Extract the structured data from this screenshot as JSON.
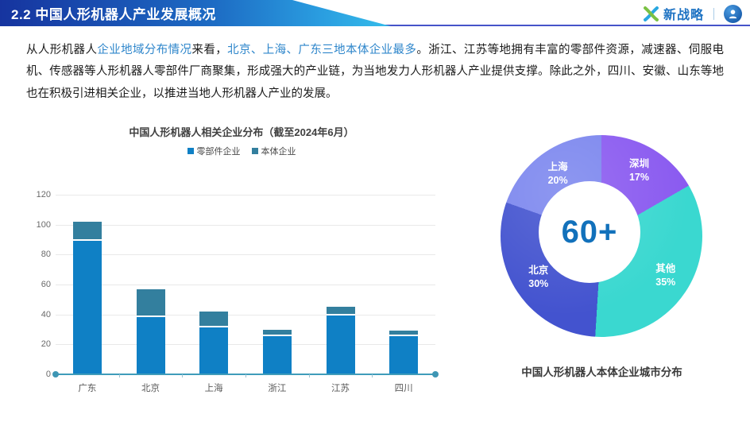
{
  "header": {
    "title": "2.2 中国人形机器人产业发展概况",
    "brand": {
      "name": "新战略",
      "separator": "｜"
    }
  },
  "paragraph": {
    "segments": [
      {
        "text": "从人形机器人",
        "style": "black"
      },
      {
        "text": "企业地域分布情况",
        "style": "blue"
      },
      {
        "text": "来看，",
        "style": "black"
      },
      {
        "text": "北京、上海、广东三地本体企业最多",
        "style": "blue"
      },
      {
        "text": "。浙江、江苏等地拥有丰富的零部件资源，减速器、伺服电机、传感器等人形机器人零部件厂商聚集，形成强大的产业链，为当地发力人形机器人产业提供支撑。除此之外，四川、安徽、山东等地也在积极引进相关企业，以推进当地人形机器人产业的发展。",
        "style": "black"
      }
    ]
  },
  "chart_data": [
    {
      "type": "bar",
      "stacked": true,
      "title": "中国人形机器人相关企业分布（截至2024年6月）",
      "categories": [
        "广东",
        "北京",
        "上海",
        "浙江",
        "江苏",
        "四川"
      ],
      "series": [
        {
          "name": "零部件企业",
          "color": "#0f80c5",
          "values": [
            90,
            39,
            32,
            26,
            40,
            26
          ]
        },
        {
          "name": "本体企业",
          "color": "#337f9e",
          "values": [
            12,
            18,
            10,
            4,
            5,
            3
          ]
        }
      ],
      "totals": [
        102,
        57,
        42,
        30,
        45,
        29
      ],
      "ylim": [
        0,
        120
      ],
      "yticks": [
        0,
        20,
        40,
        60,
        80,
        100,
        120
      ],
      "grid": true,
      "legend_position": "top"
    },
    {
      "type": "pie",
      "donut": true,
      "center_label": "60+",
      "caption": "中国人形机器人本体企业城市分布",
      "slices": [
        {
          "label": "深圳",
          "pct_label": "17%",
          "value": 17,
          "color": "#8a5af0"
        },
        {
          "label": "其他",
          "pct_label": "35%",
          "value": 35,
          "color": "#3ad8d0"
        },
        {
          "label": "北京",
          "pct_label": "30%",
          "value": 30,
          "color": "#4353cf"
        },
        {
          "label": "上海",
          "pct_label": "20%",
          "value": 20,
          "color": "#7b86ee"
        }
      ],
      "start_angle_deg": 0,
      "clockwise": true
    }
  ]
}
